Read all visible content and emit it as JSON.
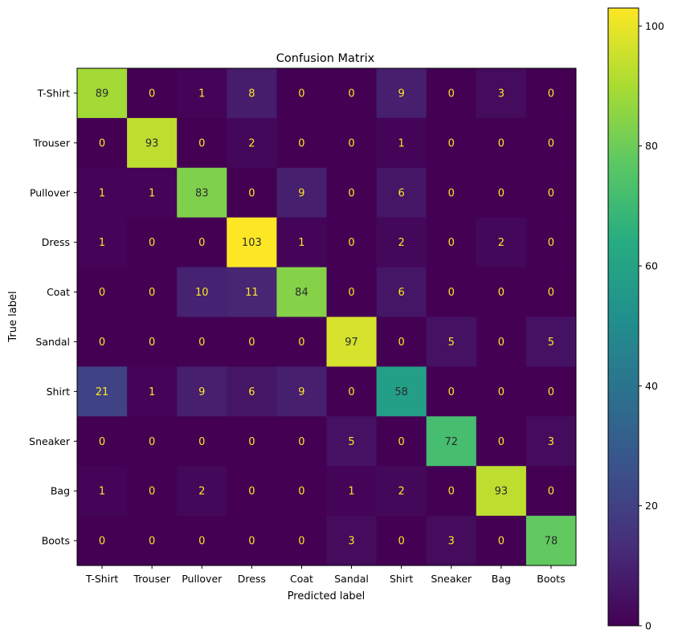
{
  "chart_data": {
    "type": "heatmap",
    "title": "Confusion Matrix",
    "xlabel": "Predicted label",
    "ylabel": "True label",
    "x_categories": [
      "T-Shirt",
      "Trouser",
      "Pullover",
      "Dress",
      "Coat",
      "Sandal",
      "Shirt",
      "Sneaker",
      "Bag",
      "Boots"
    ],
    "y_categories": [
      "T-Shirt",
      "Trouser",
      "Pullover",
      "Dress",
      "Coat",
      "Sandal",
      "Shirt",
      "Sneaker",
      "Bag",
      "Boots"
    ],
    "values": [
      [
        89,
        0,
        1,
        8,
        0,
        0,
        9,
        0,
        3,
        0
      ],
      [
        0,
        93,
        0,
        2,
        0,
        0,
        1,
        0,
        0,
        0
      ],
      [
        1,
        1,
        83,
        0,
        9,
        0,
        6,
        0,
        0,
        0
      ],
      [
        1,
        0,
        0,
        103,
        1,
        0,
        2,
        0,
        2,
        0
      ],
      [
        0,
        0,
        10,
        11,
        84,
        0,
        6,
        0,
        0,
        0
      ],
      [
        0,
        0,
        0,
        0,
        0,
        97,
        0,
        5,
        0,
        5
      ],
      [
        21,
        1,
        9,
        6,
        9,
        0,
        58,
        0,
        0,
        0
      ],
      [
        0,
        0,
        0,
        0,
        0,
        5,
        0,
        72,
        0,
        3
      ],
      [
        1,
        0,
        2,
        0,
        0,
        1,
        2,
        0,
        93,
        0
      ],
      [
        0,
        0,
        0,
        0,
        0,
        3,
        0,
        3,
        0,
        78
      ]
    ],
    "colormap": "viridis",
    "colorbar": {
      "range": [
        0,
        103
      ],
      "ticks": [
        0,
        20,
        40,
        60,
        80,
        100
      ]
    }
  }
}
